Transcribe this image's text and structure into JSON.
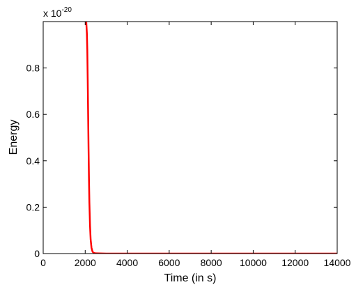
{
  "chart_data": {
    "type": "line",
    "title": "",
    "xlabel": "Time (in s)",
    "ylabel": "Energy",
    "xlim": [
      0,
      14000
    ],
    "ylim": [
      0,
      1
    ],
    "xticks": [
      0,
      2000,
      4000,
      6000,
      8000,
      10000,
      12000,
      14000
    ],
    "yticks": [
      0,
      0.2,
      0.4,
      0.6,
      0.8
    ],
    "y_exponent_base": "x 10",
    "y_exponent_power": "-20",
    "grid": false,
    "series": [
      {
        "color": "#ff0000",
        "x": [
          2050,
          2080,
          2100,
          2120,
          2140,
          2160,
          2180,
          2200,
          2230,
          2260,
          2300,
          2350,
          2400,
          2500,
          3000,
          5000,
          8000,
          11000,
          14000
        ],
        "y": [
          1.0,
          0.95,
          0.88,
          0.75,
          0.6,
          0.45,
          0.32,
          0.22,
          0.12,
          0.06,
          0.025,
          0.008,
          0.003,
          0.001,
          0.0,
          0.0,
          0.0,
          0.0,
          0.0
        ]
      }
    ]
  }
}
